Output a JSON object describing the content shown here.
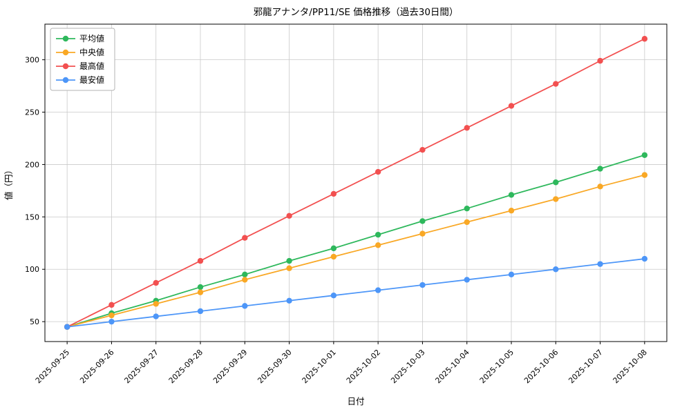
{
  "chart_data": {
    "type": "line",
    "title": "邪龍アナンタ/PP11/SE 価格推移（過去30日間）",
    "xlabel": "日付",
    "ylabel": "値（円）",
    "x": [
      "2025-09-25",
      "2025-09-26",
      "2025-09-27",
      "2025-09-28",
      "2025-09-29",
      "2025-09-30",
      "2025-10-01",
      "2025-10-02",
      "2025-10-03",
      "2025-10-04",
      "2025-10-05",
      "2025-10-06",
      "2025-10-07",
      "2025-10-08"
    ],
    "yticks": [
      50,
      100,
      150,
      200,
      250,
      300
    ],
    "ylim": [
      31,
      334
    ],
    "grid": true,
    "legend_position": "upper-left",
    "series": [
      {
        "name": "平均値",
        "color": "#2eb85c",
        "values": [
          45,
          58,
          70,
          83,
          95,
          108,
          120,
          133,
          146,
          158,
          171,
          183,
          196,
          209
        ]
      },
      {
        "name": "中央値",
        "color": "#f9a825",
        "values": [
          45,
          56,
          67,
          78,
          90,
          101,
          112,
          123,
          134,
          145,
          156,
          167,
          179,
          190
        ]
      },
      {
        "name": "最高値",
        "color": "#f25050",
        "values": [
          45,
          66,
          87,
          108,
          130,
          151,
          172,
          193,
          214,
          235,
          256,
          277,
          299,
          320
        ]
      },
      {
        "name": "最安値",
        "color": "#4d96f8",
        "values": [
          45,
          50,
          55,
          60,
          65,
          70,
          75,
          80,
          85,
          90,
          95,
          100,
          105,
          110
        ]
      }
    ],
    "grid_color": "#c9c9c9",
    "frame_color": "#000000",
    "legend_border_color": "#b3b3b3"
  }
}
